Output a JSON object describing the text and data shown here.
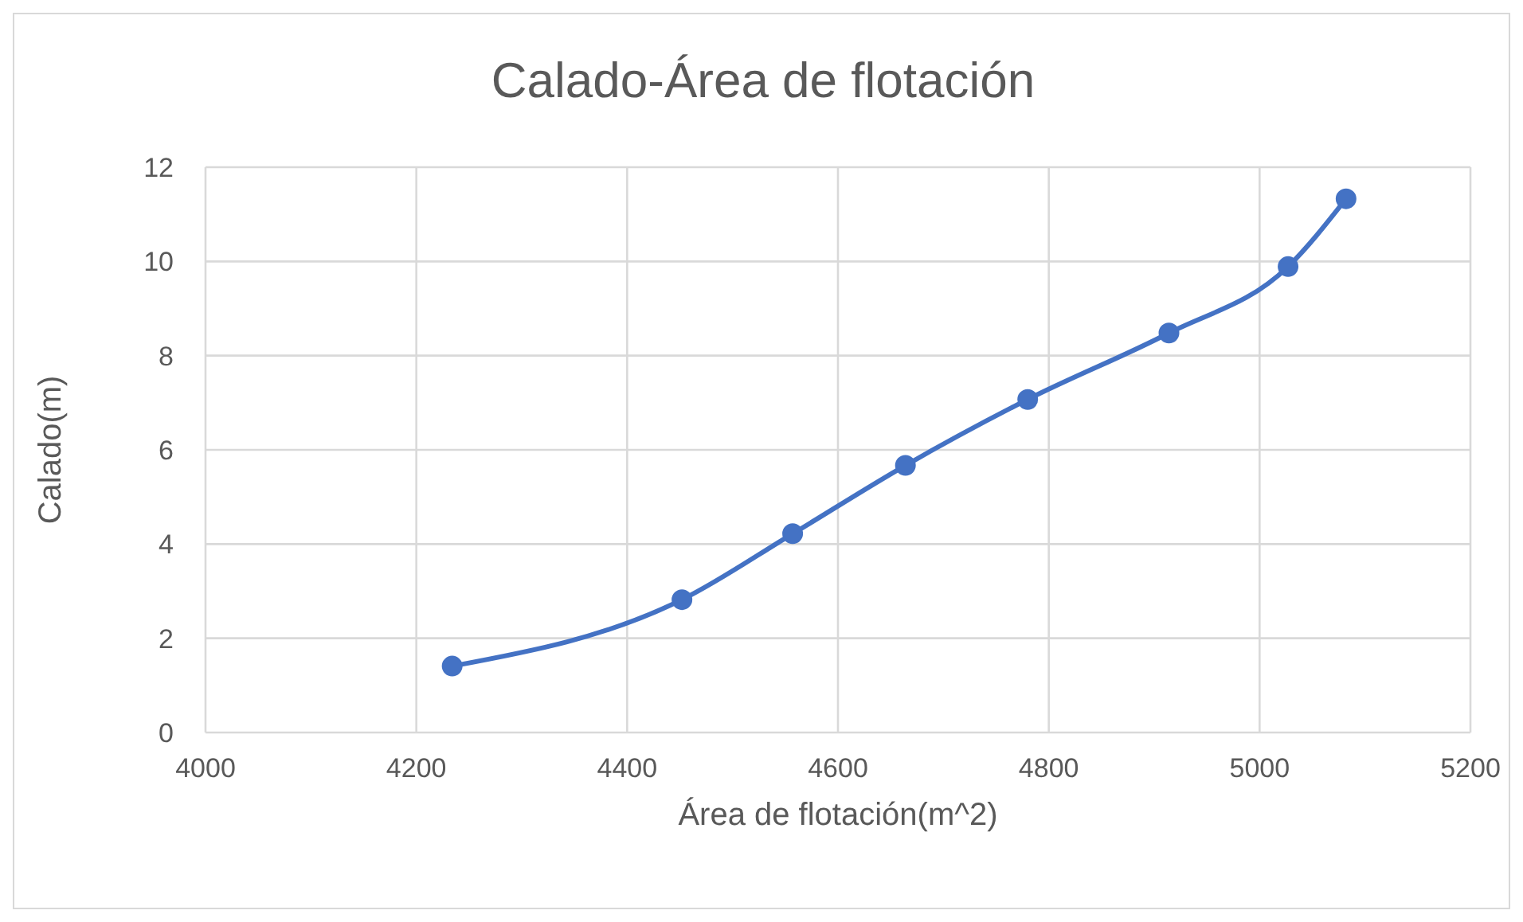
{
  "chart_data": {
    "type": "line",
    "title": "Calado-Área de flotación",
    "xlabel": "Área de flotación(m^2)",
    "ylabel": "Calado(m)",
    "x": [
      4234,
      4452,
      4557,
      4664,
      4780,
      4914,
      5027,
      5082
    ],
    "series": [
      {
        "color": "#4472c4",
        "values": [
          1.41,
          2.82,
          4.22,
          5.67,
          7.07,
          8.48,
          9.89,
          11.33
        ]
      }
    ],
    "xlim": [
      4000,
      5200
    ],
    "xticks": [
      4000,
      4200,
      4400,
      4600,
      4800,
      5000,
      5200
    ],
    "ylim": [
      0,
      12
    ],
    "yticks": [
      0,
      2,
      4,
      6,
      8,
      10,
      12
    ],
    "grid": true,
    "marker": "circle",
    "line_style": "solid"
  }
}
